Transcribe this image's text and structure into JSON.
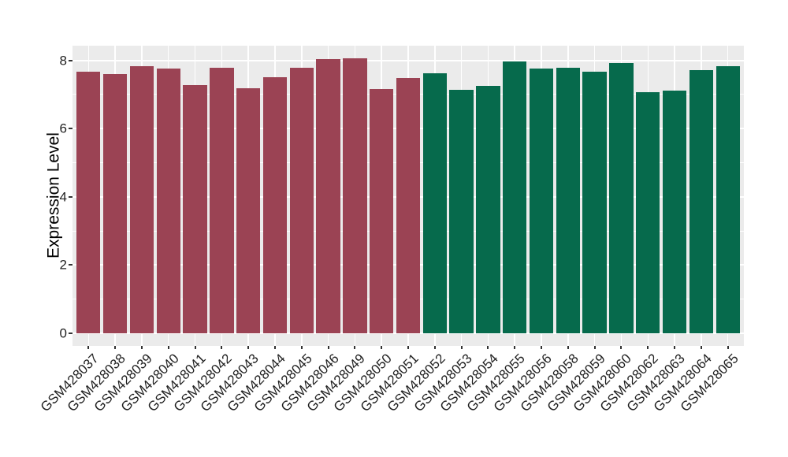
{
  "chart_data": {
    "type": "bar",
    "title": "",
    "xlabel": "",
    "ylabel": "Expression Level",
    "yticks": [
      0,
      2,
      4,
      6,
      8
    ],
    "yticks_minor": [
      1,
      3,
      5,
      7
    ],
    "ylim": [
      0,
      8.43
    ],
    "grid": "major-and-minor-horizontal, major-vertical",
    "legend": "none",
    "panel_bg": "#EBEBEB",
    "grid_color": "#FFFFFF",
    "tick_color": "#333333",
    "text_color": "#1F1F1F",
    "bar_width_fraction": 0.9,
    "groups": [
      {
        "name": "group-1",
        "color": "#9B4354",
        "first": "GSM428037",
        "last": "GSM428051",
        "count": 13
      },
      {
        "name": "group-2",
        "color": "#066A4C",
        "first": "GSM428052",
        "last": "GSM428065",
        "count": 12
      }
    ],
    "categories": [
      "GSM428037",
      "GSM428038",
      "GSM428039",
      "GSM428040",
      "GSM428041",
      "GSM428042",
      "GSM428043",
      "GSM428044",
      "GSM428045",
      "GSM428046",
      "GSM428049",
      "GSM428050",
      "GSM428051",
      "GSM428052",
      "GSM428053",
      "GSM428054",
      "GSM428055",
      "GSM428056",
      "GSM428058",
      "GSM428059",
      "GSM428060",
      "GSM428062",
      "GSM428063",
      "GSM428064",
      "GSM428065"
    ],
    "values": [
      7.67,
      7.59,
      7.82,
      7.76,
      7.27,
      7.79,
      7.19,
      7.5,
      7.78,
      8.04,
      8.06,
      7.17,
      7.48,
      7.61,
      7.13,
      7.25,
      7.96,
      7.76,
      7.79,
      7.66,
      7.92,
      7.06,
      7.12,
      7.71,
      7.84
    ],
    "bar_colors": [
      "#9B4354",
      "#9B4354",
      "#9B4354",
      "#9B4354",
      "#9B4354",
      "#9B4354",
      "#9B4354",
      "#9B4354",
      "#9B4354",
      "#9B4354",
      "#9B4354",
      "#9B4354",
      "#9B4354",
      "#066A4C",
      "#066A4C",
      "#066A4C",
      "#066A4C",
      "#066A4C",
      "#066A4C",
      "#066A4C",
      "#066A4C",
      "#066A4C",
      "#066A4C",
      "#066A4C",
      "#066A4C"
    ]
  }
}
